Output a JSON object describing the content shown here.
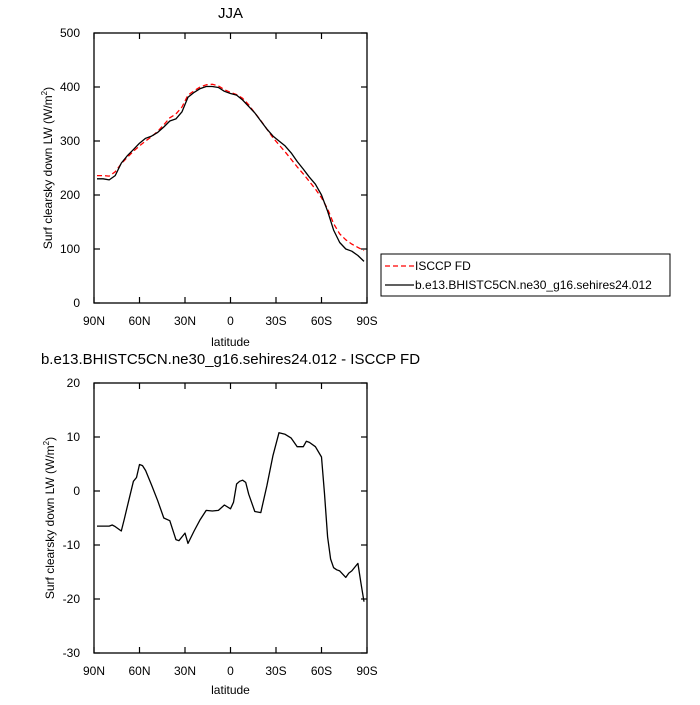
{
  "chart_data": [
    {
      "type": "line",
      "title": "JJA",
      "xlabel": "latitude",
      "ylabel": "Surf clearsky down LW (W/m",
      "ylabel_sup": "2",
      "ylabel_close": ")",
      "xlim": [
        90,
        -90
      ],
      "ylim": [
        0,
        500
      ],
      "x_ticks": [
        90,
        60,
        30,
        0,
        -30,
        -60,
        -90
      ],
      "x_tick_labels": [
        "90N",
        "60N",
        "30N",
        "0",
        "30S",
        "60S",
        "90S"
      ],
      "y_ticks": [
        0,
        100,
        200,
        300,
        400,
        500
      ],
      "y_tick_labels": [
        "0",
        "100",
        "200",
        "300",
        "400",
        "500"
      ],
      "legend_position": "right",
      "series": [
        {
          "name": "ISCCP FD",
          "color": "#ff0000",
          "dash": "dashed",
          "x": [
            88,
            84,
            80,
            76,
            72,
            68,
            64,
            60,
            56,
            52,
            48,
            44,
            40,
            36,
            32,
            28,
            24,
            20,
            16,
            12,
            8,
            4,
            0,
            -4,
            -8,
            -12,
            -16,
            -20,
            -24,
            -28,
            -32,
            -36,
            -40,
            -44,
            -48,
            -52,
            -56,
            -60,
            -64,
            -68,
            -72,
            -76,
            -80,
            -84,
            -88
          ],
          "values": [
            236,
            236,
            235,
            243,
            258,
            270,
            281,
            291,
            300,
            308,
            318,
            330,
            343,
            350,
            363,
            385,
            393,
            400,
            404,
            405,
            402,
            395,
            390,
            386,
            379,
            367,
            352,
            338,
            322,
            306,
            293,
            280,
            266,
            252,
            239,
            225,
            211,
            195,
            174,
            147,
            128,
            117,
            109,
            103,
            97
          ]
        },
        {
          "name": "b.e13.BHISTC5CN.ne30_g16.sehires24.012",
          "color": "#000000",
          "dash": "solid",
          "x": [
            88,
            84,
            80,
            76,
            72,
            68,
            64,
            60,
            56,
            52,
            48,
            44,
            40,
            36,
            32,
            28,
            24,
            20,
            16,
            12,
            8,
            4,
            0,
            -4,
            -8,
            -12,
            -16,
            -20,
            -24,
            -28,
            -32,
            -36,
            -40,
            -44,
            -48,
            -52,
            -56,
            -60,
            -64,
            -68,
            -72,
            -76,
            -80,
            -84,
            -88
          ],
          "values": [
            230,
            230,
            228,
            236,
            259,
            273,
            284,
            296,
            305,
            309,
            316,
            326,
            337,
            341,
            354,
            381,
            390,
            397,
            401,
            401,
            399,
            392,
            388,
            385,
            376,
            364,
            352,
            337,
            322,
            309,
            300,
            291,
            278,
            262,
            248,
            233,
            220,
            200,
            170,
            135,
            112,
            100,
            96,
            88,
            77
          ]
        }
      ]
    },
    {
      "type": "line",
      "title": "b.e13.BHISTC5CN.ne30_g16.sehires24.012 - ISCCP FD",
      "xlabel": "latitude",
      "ylabel": "Surf clearsky down LW (W/m",
      "ylabel_sup": "2",
      "ylabel_close": ")",
      "xlim": [
        90,
        -90
      ],
      "ylim": [
        -30,
        20
      ],
      "x_ticks": [
        90,
        60,
        30,
        0,
        -30,
        -60,
        -90
      ],
      "x_tick_labels": [
        "90N",
        "60N",
        "30N",
        "0",
        "30S",
        "60S",
        "90S"
      ],
      "y_ticks": [
        -30,
        -20,
        -10,
        0,
        10,
        20
      ],
      "y_tick_labels": [
        "-30",
        "-20",
        "-10",
        "0",
        "10",
        "20"
      ],
      "series": [
        {
          "color": "#000000",
          "dash": "solid",
          "x": [
            88,
            84,
            80,
            78,
            76,
            72,
            70,
            68,
            64,
            62,
            60,
            58,
            56,
            52,
            48,
            44,
            40,
            36,
            34,
            32,
            30,
            28,
            24,
            20,
            16,
            12,
            8,
            4,
            0,
            -2,
            -4,
            -6,
            -8,
            -10,
            -12,
            -16,
            -20,
            -24,
            -28,
            -32,
            -36,
            -40,
            -44,
            -48,
            -50,
            -52,
            -56,
            -60,
            -62,
            -64,
            -66,
            -68,
            -70,
            -72,
            -76,
            -78,
            -80,
            -84,
            -86,
            -88
          ],
          "values": [
            -6.5,
            -6.5,
            -6.5,
            -6.3,
            -6.6,
            -7.4,
            -5.2,
            -2.8,
            1.8,
            2.5,
            4.9,
            4.7,
            3.8,
            1.1,
            -1.8,
            -5.0,
            -5.5,
            -9.0,
            -9.2,
            -8.5,
            -7.8,
            -9.7,
            -7.4,
            -5.3,
            -3.6,
            -3.7,
            -3.6,
            -2.6,
            -3.3,
            -2.1,
            1.3,
            1.8,
            2.0,
            1.6,
            -0.6,
            -3.8,
            -4.0,
            1.0,
            6.6,
            10.8,
            10.5,
            9.8,
            8.2,
            8.2,
            9.2,
            9.0,
            8.2,
            6.3,
            -0.5,
            -8.5,
            -12.6,
            -14.2,
            -14.6,
            -14.8,
            -16.0,
            -15.2,
            -14.8,
            -13.4,
            -17.0,
            -20.5
          ]
        }
      ]
    }
  ]
}
